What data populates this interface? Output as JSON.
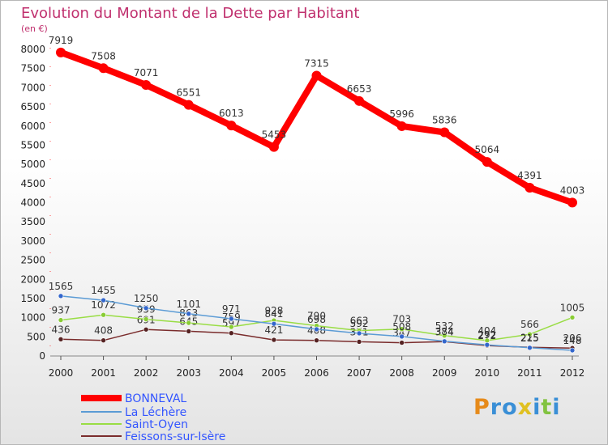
{
  "title": "Evolution du Montant de la Dette par Habitant",
  "unit_label": "(en €)",
  "logo_text": "Proxiti",
  "chart_data": {
    "type": "line",
    "title": "Evolution du Montant de la Dette par Habitant",
    "ylabel": "(en €)",
    "xlabel": "",
    "x": [
      "2000",
      "2001",
      "2002",
      "2003",
      "2004",
      "2005",
      "2006",
      "2007",
      "2008",
      "2009",
      "2010",
      "2011",
      "2012"
    ],
    "ylim": [
      0,
      8000
    ],
    "yticks": [
      "0",
      "500",
      "1000",
      "1500",
      "2000",
      "2500",
      "3000",
      "3500",
      "4000",
      "4500",
      "5000",
      "5500",
      "6000",
      "6500",
      "7000",
      "7500",
      "8000"
    ],
    "grid": false,
    "legend": "bottom-left",
    "series": [
      {
        "name": "BONNEVAL",
        "color": "#ff0000",
        "values": [
          7919,
          7508,
          7071,
          6551,
          6013,
          5453,
          7315,
          6653,
          5996,
          5836,
          5064,
          4391,
          4003
        ],
        "labels": [
          "7919",
          "7508",
          "7071",
          "6551",
          "6013",
          "5453",
          "7315",
          "6653",
          "5996",
          "5836",
          "5064",
          "4391",
          "4003"
        ]
      },
      {
        "name": "La Léchère",
        "color": "#5b9bd5",
        "values": [
          1565,
          1455,
          1250,
          1101,
          971,
          841,
          698,
          592,
          508,
          384,
          292,
          215,
          148
        ],
        "labels": [
          "1565",
          "1455",
          "1250",
          "1101",
          "971",
          "841",
          "698",
          "592",
          "508",
          "384",
          "292",
          "215",
          "148"
        ]
      },
      {
        "name": "Saint-Oyen",
        "color": "#99dd44",
        "values": [
          937,
          1072,
          959,
          863,
          759,
          928,
          790,
          663,
          703,
          532,
          404,
          566,
          1005
        ],
        "labels": [
          "937",
          "1072",
          "959",
          "863",
          "759",
          "928",
          "790",
          "663",
          "703",
          "532",
          "404",
          "566",
          "1005"
        ]
      },
      {
        "name": "Feissons-sur-Isère",
        "color": "#7a2c2c",
        "values": [
          436,
          408,
          691,
          645,
          597,
          421,
          408,
          371,
          347,
          374,
          272,
          225,
          206
        ],
        "labels": [
          "436",
          "408",
          "691",
          "645",
          "597",
          "421",
          "408",
          "371",
          "347",
          "374",
          "272",
          "225",
          "206"
        ]
      }
    ]
  }
}
